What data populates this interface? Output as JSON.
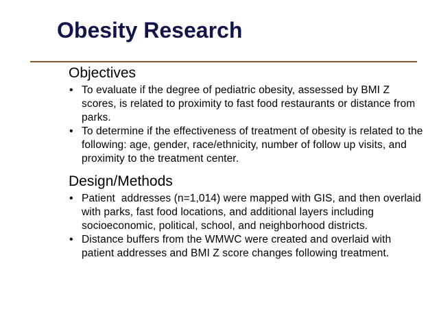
{
  "slide": {
    "title": "Obesity Research",
    "sections": [
      {
        "heading": "Objectives",
        "bullets": [
          "To evaluate if the degree of pediatric obesity, assessed by BMI Z scores, is related to proximity to fast food restaurants or distance from parks.",
          "To determine if the effectiveness of treatment of obesity is related to the following: age, gender, race/ethnicity, number of follow up visits, and proximity to the treatment center."
        ]
      },
      {
        "heading": "Design/Methods",
        "bullets": [
          "Patient  addresses (n=1,014) were mapped with GIS, and then overlaid with parks, fast food locations, and additional layers including socioeconomic, political, school, and neighborhood districts.",
          "Distance buffers from the WMWC were created and overlaid with patient addresses and BMI Z score changes following treatment."
        ]
      }
    ],
    "bullet_glyph": "•",
    "colors": {
      "title": "#10154a",
      "rule": "#8a5a2b",
      "text": "#000000"
    }
  }
}
